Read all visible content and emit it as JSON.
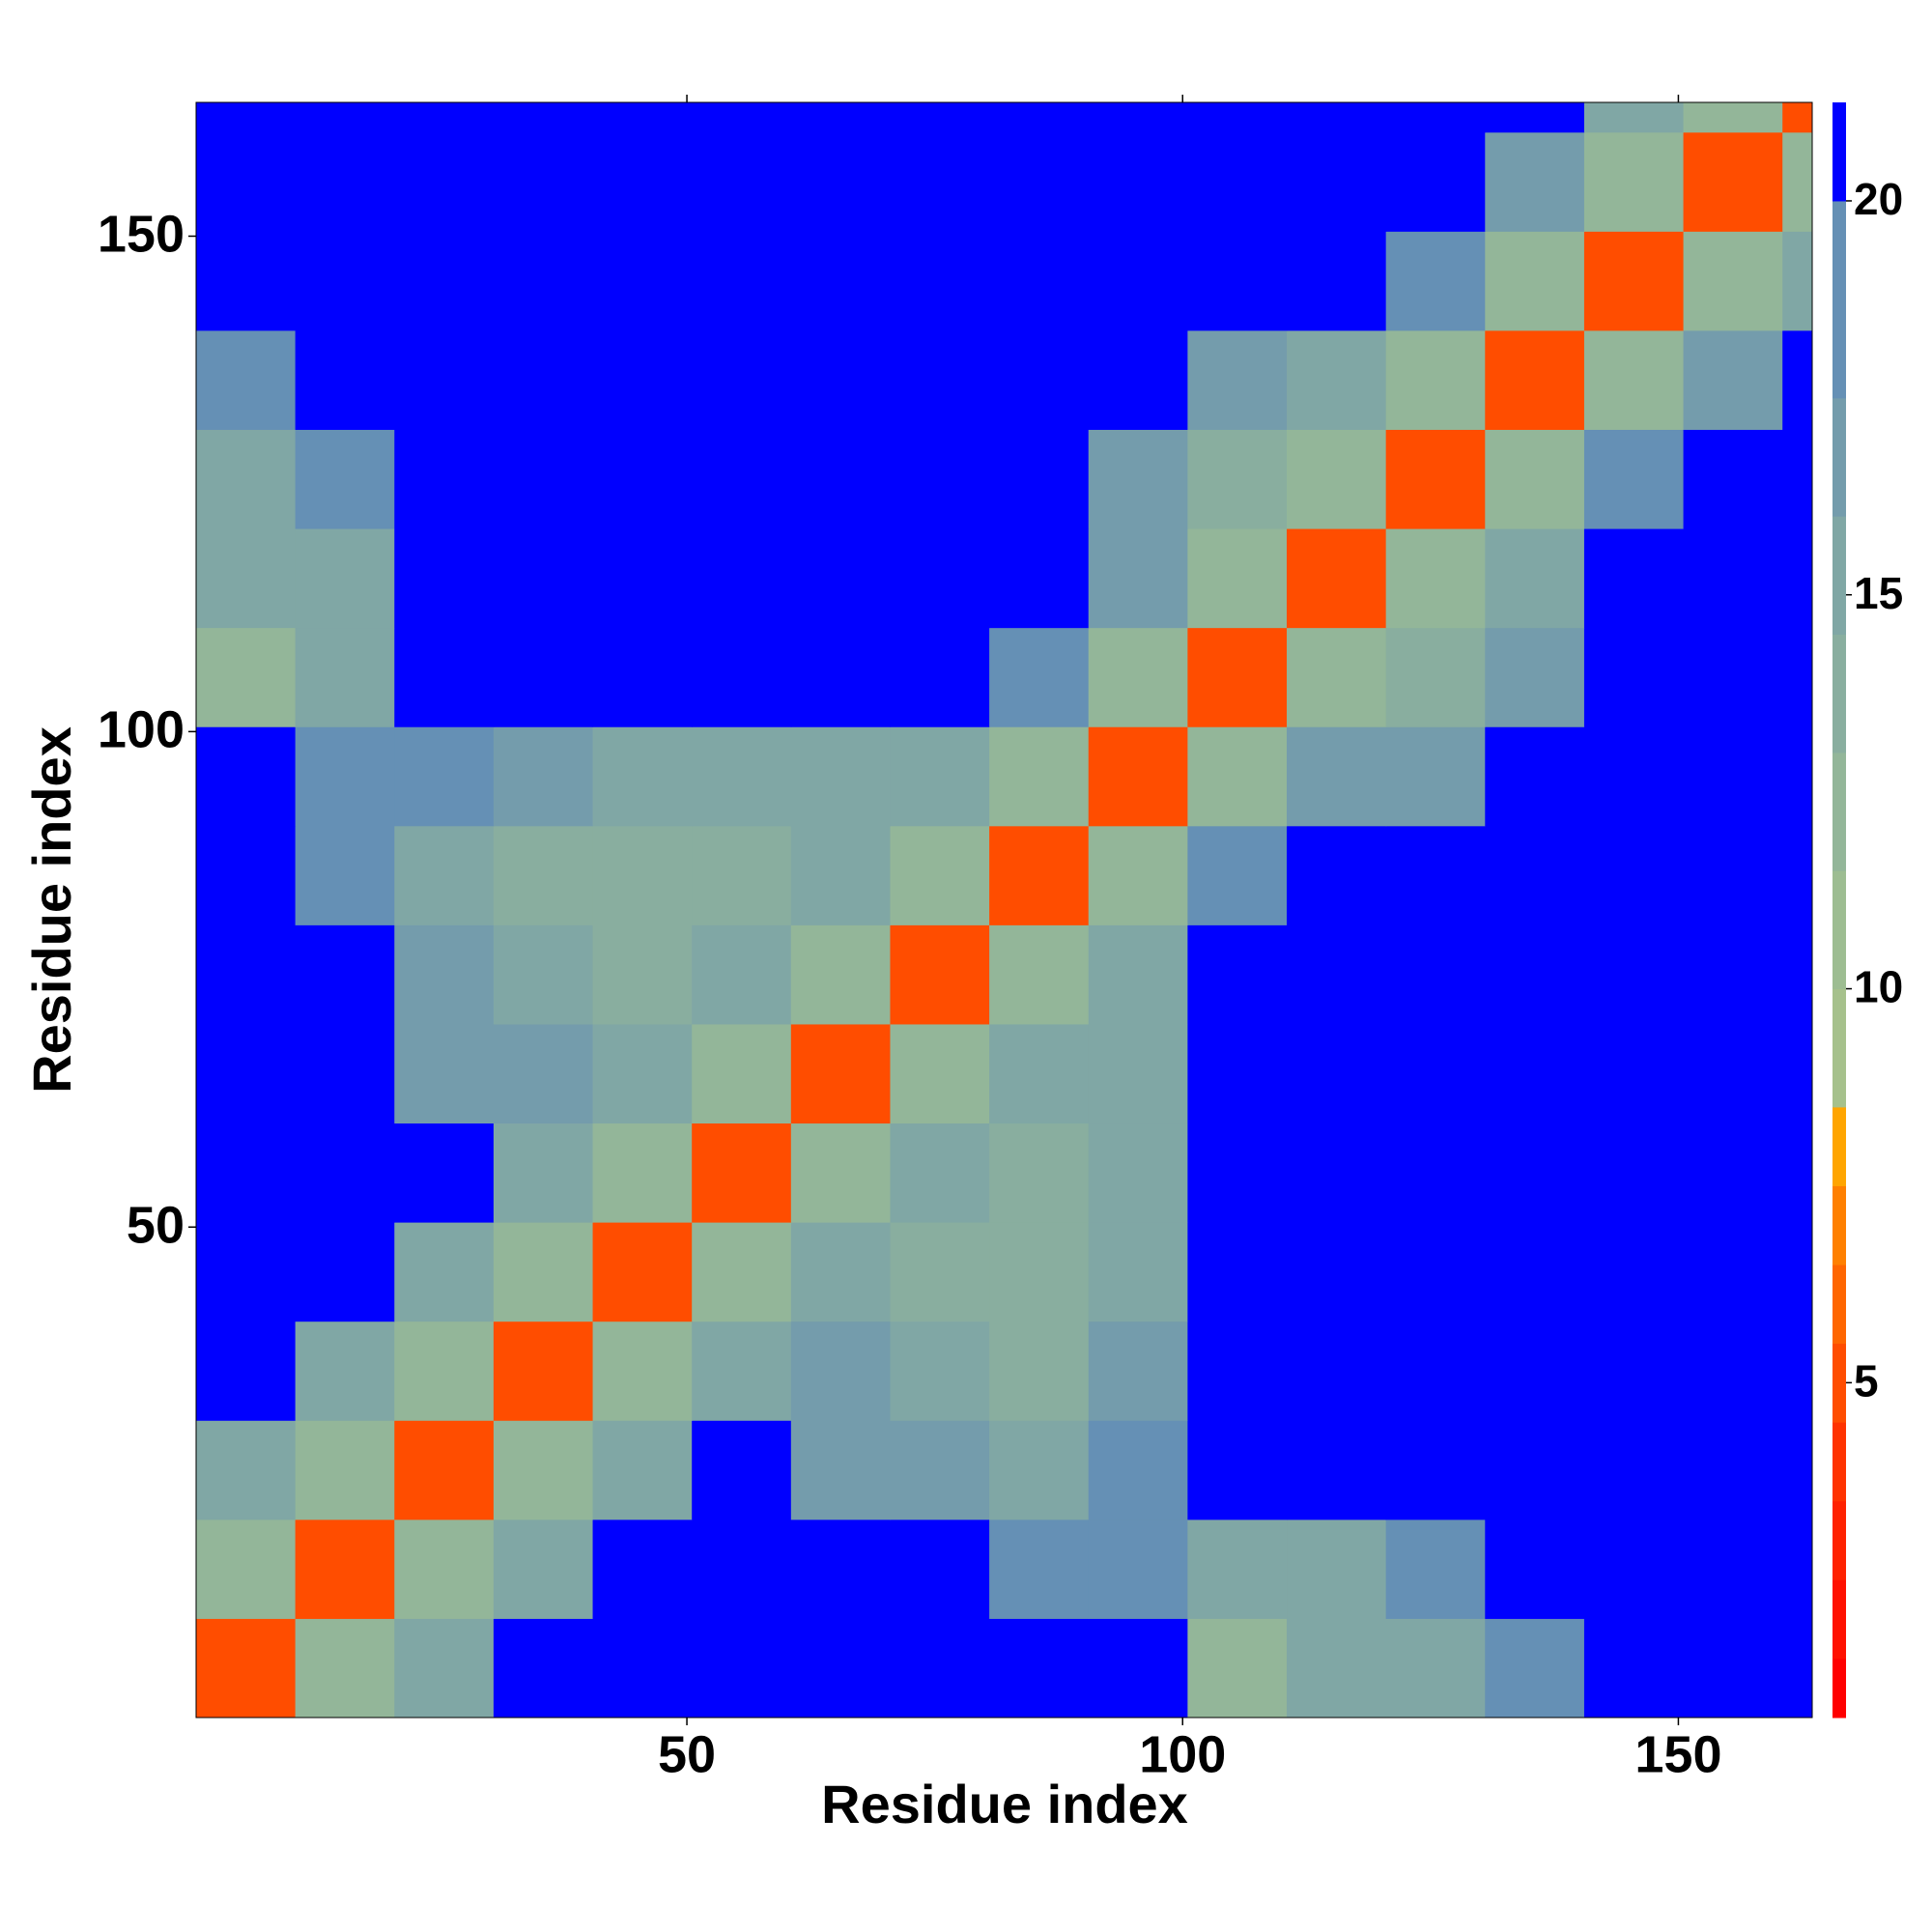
{
  "chart_data": {
    "type": "heatmap",
    "xlabel": "Residue index",
    "ylabel": "Residue index",
    "xlim": [
      0.5,
      163.5
    ],
    "ylim": [
      0.5,
      163.5
    ],
    "xticks": [
      50,
      100,
      150
    ],
    "yticks": [
      50,
      100,
      150
    ],
    "xbins": [
      0.5,
      10.5,
      20.5,
      30.5,
      40.5,
      50.5,
      60.5,
      70.5,
      80.5,
      90.5,
      100.5,
      110.5,
      120.5,
      130.5,
      140.5,
      150.5,
      160.5,
      163.5
    ],
    "ybins": [
      0.5,
      10.5,
      20.5,
      30.5,
      40.5,
      50.5,
      60.5,
      70.5,
      80.5,
      90.5,
      100.5,
      110.5,
      120.5,
      130.5,
      140.5,
      150.5,
      160.5,
      163.5
    ],
    "z": [
      [
        5,
        12,
        16,
        21,
        21,
        21,
        21,
        21,
        21,
        21,
        12,
        15,
        16,
        18,
        21,
        21,
        21
      ],
      [
        12,
        5,
        12,
        16,
        21,
        21,
        21,
        21,
        18,
        19,
        16,
        16,
        18,
        21,
        21,
        21,
        21
      ],
      [
        16,
        12,
        5,
        12,
        16,
        21,
        17,
        17,
        16,
        18,
        21,
        21,
        21,
        21,
        21,
        21,
        21
      ],
      [
        21,
        16,
        12,
        5,
        12,
        16,
        17,
        15,
        14,
        17,
        21,
        21,
        21,
        21,
        21,
        21,
        21
      ],
      [
        21,
        21,
        16,
        12,
        5,
        12,
        15,
        14,
        14,
        16,
        21,
        21,
        21,
        21,
        21,
        21,
        21
      ],
      [
        21,
        21,
        21,
        16,
        12,
        5,
        12,
        15,
        14,
        16,
        21,
        21,
        21,
        21,
        21,
        21,
        21
      ],
      [
        21,
        21,
        17,
        17,
        15,
        12,
        5,
        12,
        15,
        16,
        21,
        21,
        21,
        21,
        21,
        21,
        21
      ],
      [
        21,
        21,
        17,
        15,
        14,
        15,
        12,
        5,
        12,
        16,
        21,
        21,
        21,
        21,
        21,
        21,
        21
      ],
      [
        21,
        18,
        16,
        14,
        14,
        14,
        15,
        12,
        5,
        12,
        18,
        21,
        21,
        21,
        21,
        21,
        21
      ],
      [
        21,
        19,
        18,
        17,
        16,
        16,
        16,
        16,
        12,
        5,
        13,
        17,
        17,
        21,
        21,
        21,
        21
      ],
      [
        12,
        16,
        21,
        21,
        21,
        21,
        21,
        21,
        18,
        13,
        5,
        12,
        14,
        17,
        21,
        21,
        21
      ],
      [
        15,
        16,
        21,
        21,
        21,
        21,
        21,
        21,
        21,
        17,
        12,
        5,
        12,
        16,
        21,
        21,
        21
      ],
      [
        16,
        18,
        21,
        21,
        21,
        21,
        21,
        21,
        21,
        17,
        14,
        12,
        5,
        13,
        18,
        21,
        21
      ],
      [
        18,
        21,
        21,
        21,
        21,
        21,
        21,
        21,
        21,
        21,
        17,
        16,
        13,
        5,
        13,
        17,
        21
      ],
      [
        21,
        21,
        21,
        21,
        21,
        21,
        21,
        21,
        21,
        21,
        21,
        21,
        18,
        13,
        5,
        13,
        16
      ],
      [
        21,
        21,
        21,
        21,
        21,
        21,
        21,
        21,
        21,
        21,
        21,
        21,
        21,
        17,
        13,
        5,
        12
      ],
      [
        21,
        21,
        21,
        21,
        21,
        21,
        21,
        21,
        21,
        21,
        21,
        21,
        21,
        21,
        16,
        12,
        5
      ]
    ],
    "colorbar": {
      "lim": [
        0.75,
        21.25
      ],
      "ticks": [
        5,
        10,
        15,
        20
      ],
      "bounds": [
        0.75,
        1.5,
        2.5,
        3.5,
        4.5,
        5.5,
        6.5,
        7.5,
        8.5,
        10,
        11.5,
        13,
        14.5,
        16,
        17.5,
        20,
        21.25
      ],
      "colors": [
        "#ff0000",
        "#ff1100",
        "#ff2200",
        "#ff3300",
        "#ff4d00",
        "#ff6600",
        "#ff8000",
        "#ffa500",
        "#a6c18c",
        "#9dbd92",
        "#93b699",
        "#89ae9f",
        "#80a7a5",
        "#749cac",
        "#6590b5",
        "#0000ff"
      ]
    }
  }
}
